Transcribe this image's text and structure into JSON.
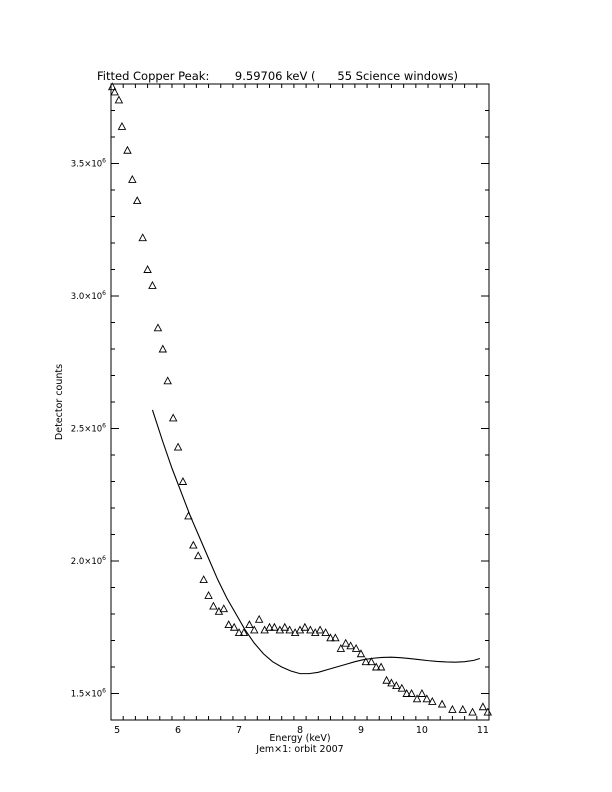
{
  "chart_data": {
    "type": "scatter",
    "title": "Fitted Copper Peak:       9.59706 keV (      55 Science windows)",
    "xlabel": "Energy (keV)",
    "ylabel": "Detector counts",
    "caption": "Jem×1: orbit 2007",
    "xlim": [
      4.9,
      11.1
    ],
    "ylim": [
      1400000,
      3800000
    ],
    "x_ticks": [
      5,
      6,
      7,
      8,
      9,
      10,
      11
    ],
    "x_tick_labels": [
      "5",
      "6",
      "7",
      "8",
      "9",
      "10",
      "11"
    ],
    "y_ticks": [
      1500000,
      2000000,
      2500000,
      3000000,
      3500000
    ],
    "y_tick_labels": [
      {
        "mant": "1.5×10",
        "exp": "6"
      },
      {
        "mant": "2.0×10",
        "exp": "6"
      },
      {
        "mant": "2.5×10",
        "exp": "6"
      },
      {
        "mant": "3.0×10",
        "exp": "6"
      },
      {
        "mant": "3.5×10",
        "exp": "6"
      }
    ],
    "grid": false,
    "series": [
      {
        "marker": "triangle",
        "x": [
          4.92,
          4.96,
          5.03,
          5.08,
          5.17,
          5.25,
          5.33,
          5.42,
          5.5,
          5.58,
          5.67,
          5.75,
          5.83,
          5.92,
          6.0,
          6.08,
          6.17,
          6.25,
          6.33,
          6.42,
          6.5,
          6.58,
          6.67,
          6.75,
          6.83,
          6.92,
          7.0,
          7.08,
          7.17,
          7.25,
          7.33,
          7.42,
          7.5,
          7.58,
          7.67,
          7.75,
          7.83,
          7.92,
          8.0,
          8.08,
          8.17,
          8.25,
          8.33,
          8.42,
          8.5,
          8.58,
          8.67,
          8.75,
          8.83,
          8.92,
          9.0,
          9.08,
          9.17,
          9.25,
          9.33,
          9.42,
          9.5,
          9.58,
          9.67,
          9.75,
          9.83,
          9.92,
          10.0,
          10.08,
          10.17,
          10.33,
          10.5,
          10.67,
          10.83,
          11.0,
          11.08
        ],
        "y": [
          3790000,
          3770000,
          3740000,
          3640000,
          3550000,
          3440000,
          3360000,
          3220000,
          3100000,
          3040000,
          2880000,
          2800000,
          2680000,
          2540000,
          2430000,
          2300000,
          2170000,
          2060000,
          2020000,
          1930000,
          1870000,
          1830000,
          1810000,
          1820000,
          1760000,
          1750000,
          1730000,
          1730000,
          1760000,
          1740000,
          1780000,
          1740000,
          1750000,
          1750000,
          1740000,
          1750000,
          1740000,
          1730000,
          1740000,
          1750000,
          1740000,
          1730000,
          1740000,
          1730000,
          1710000,
          1710000,
          1670000,
          1690000,
          1680000,
          1670000,
          1650000,
          1620000,
          1620000,
          1600000,
          1600000,
          1550000,
          1540000,
          1530000,
          1520000,
          1500000,
          1500000,
          1480000,
          1500000,
          1480000,
          1470000,
          1460000,
          1440000,
          1440000,
          1430000,
          1450000,
          1430000
        ]
      },
      {
        "marker": "line",
        "x": [
          5.58,
          5.75,
          5.9,
          6.05,
          6.2,
          6.35,
          6.5,
          6.65,
          6.8,
          6.95,
          7.1,
          7.25,
          7.4,
          7.55,
          7.7,
          7.85,
          8.0,
          8.15,
          8.3,
          8.45,
          8.6,
          8.75,
          8.9,
          9.05,
          9.2,
          9.35,
          9.5,
          9.65,
          9.8,
          9.95,
          10.1,
          10.25,
          10.4,
          10.55,
          10.7,
          10.85,
          10.95
        ],
        "y": [
          2570000,
          2450000,
          2350000,
          2260000,
          2170000,
          2090000,
          2010000,
          1930000,
          1860000,
          1800000,
          1740000,
          1690000,
          1650000,
          1620000,
          1600000,
          1585000,
          1575000,
          1575000,
          1580000,
          1590000,
          1600000,
          1610000,
          1620000,
          1628000,
          1633000,
          1636000,
          1637000,
          1635000,
          1632000,
          1628000,
          1624000,
          1621000,
          1619000,
          1618000,
          1620000,
          1625000,
          1632000
        ]
      }
    ]
  }
}
